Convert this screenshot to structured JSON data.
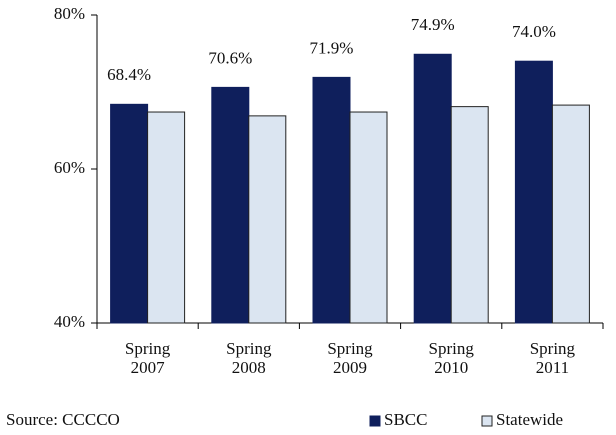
{
  "chart_data": {
    "type": "bar",
    "categories": [
      "Spring 2007",
      "Spring 2008",
      "Spring 2009",
      "Spring 2010",
      "Spring 2011"
    ],
    "series": [
      {
        "name": "SBCC",
        "color": "#0f1f5c",
        "values": [
          68.4,
          70.6,
          71.9,
          74.9,
          74.0
        ],
        "value_labels": [
          "68.4%",
          "70.6%",
          "71.9%",
          "74.9%",
          "74.0%"
        ]
      },
      {
        "name": "Statewide",
        "color": "#dbe5f1",
        "values": [
          67.4,
          66.9,
          67.4,
          68.1,
          68.3
        ]
      }
    ],
    "ylim": [
      40,
      80
    ],
    "yticks": [
      {
        "value": 40,
        "label": "40%"
      },
      {
        "value": 60,
        "label": "60%"
      },
      {
        "value": 80,
        "label": "80%"
      }
    ],
    "source": "Source: CCCCO"
  }
}
